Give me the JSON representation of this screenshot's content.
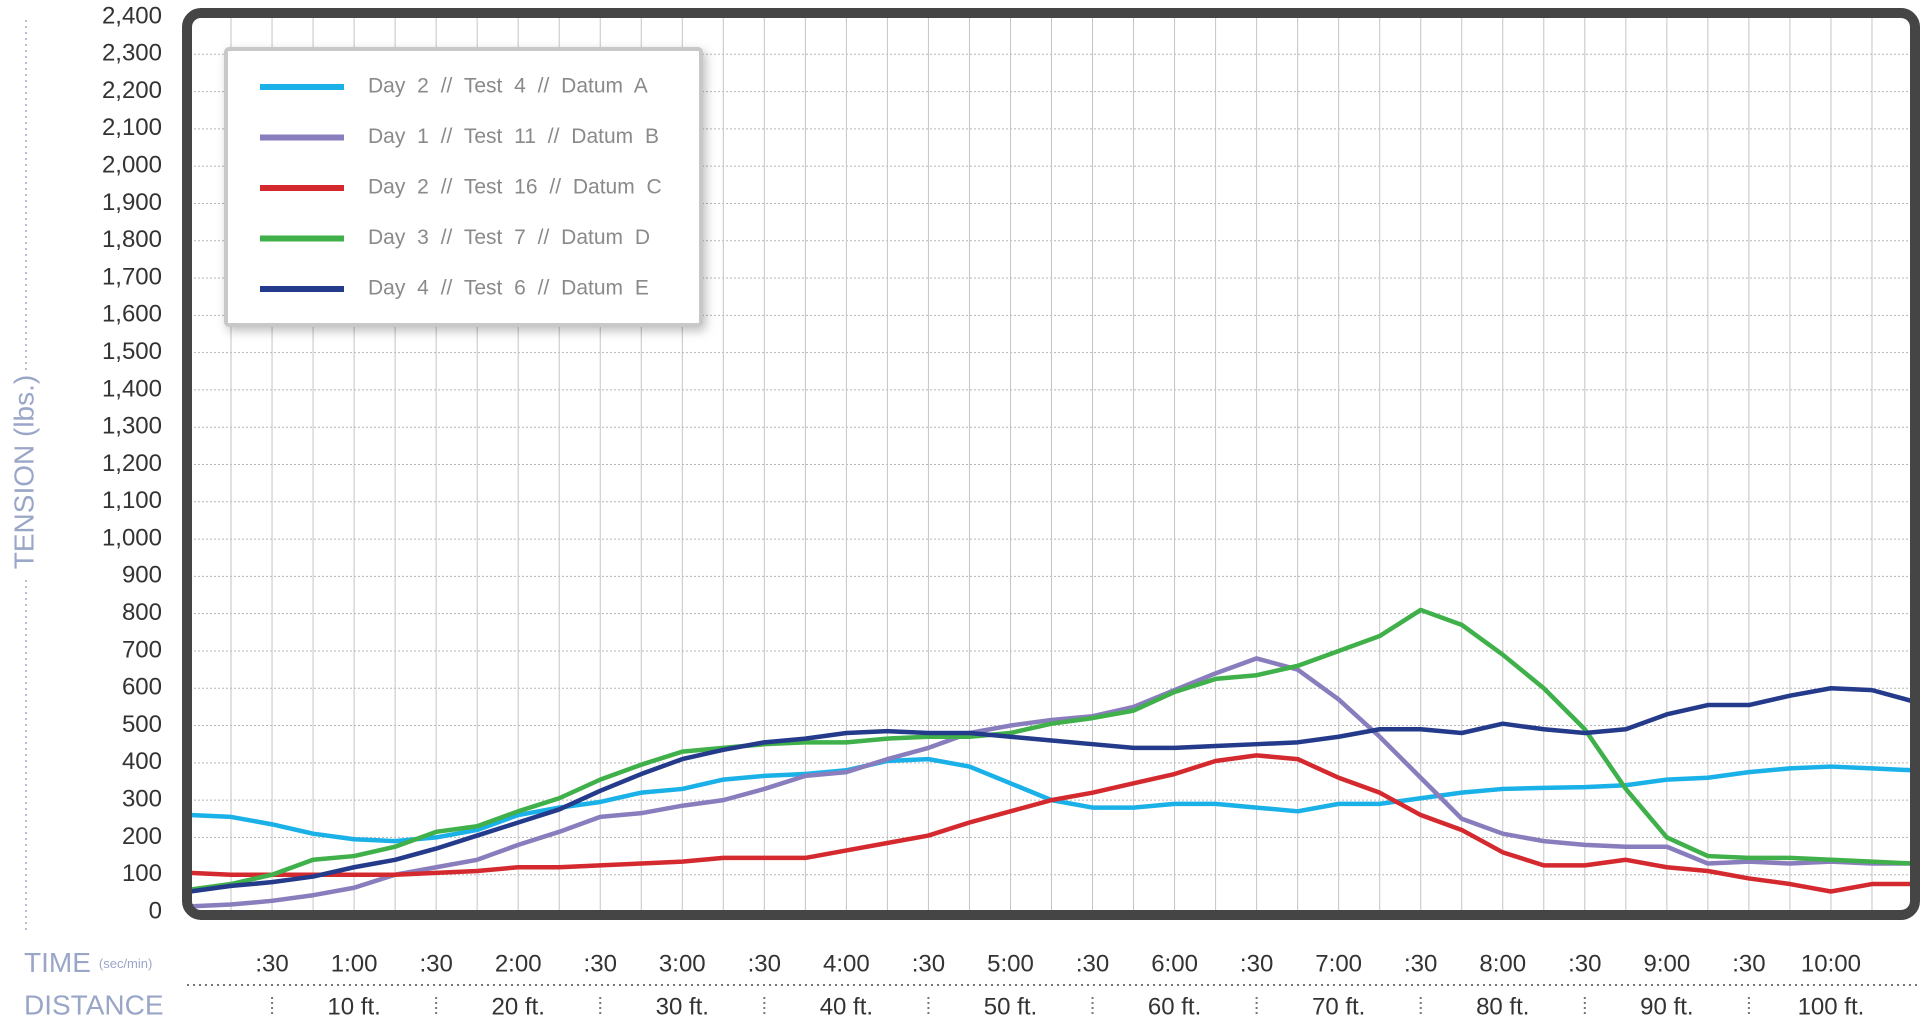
{
  "chart_data": {
    "type": "line",
    "y_label": "TENSION (lbs.)",
    "x_label": "TIME",
    "x_label_note": "(sec/min)",
    "x2_label": "DISTANCE",
    "grid": true,
    "legend": "upper left",
    "x": [
      0,
      15,
      30,
      45,
      60,
      75,
      90,
      105,
      120,
      135,
      150,
      165,
      180,
      195,
      210,
      225,
      240,
      255,
      270,
      285,
      300,
      315,
      330,
      345,
      360,
      375,
      390,
      405,
      420,
      435,
      450,
      465,
      480,
      495,
      510,
      525,
      540,
      555,
      570,
      585,
      600,
      615,
      630
    ],
    "series": [
      {
        "name": "Day 2 // Test 4 // Datum A",
        "color": "#1ab0e8",
        "values": [
          260,
          255,
          235,
          210,
          195,
          190,
          200,
          220,
          260,
          280,
          295,
          320,
          330,
          355,
          365,
          370,
          380,
          405,
          410,
          390,
          345,
          300,
          280,
          280,
          290,
          290,
          280,
          270,
          290,
          290,
          305,
          320,
          330,
          333,
          335,
          340,
          355,
          360,
          375,
          385,
          390,
          385,
          380
        ]
      },
      {
        "name": "Day 1 // Test 11 // Datum B",
        "color": "#8a7dbd",
        "values": [
          15,
          20,
          30,
          45,
          65,
          100,
          120,
          140,
          180,
          215,
          255,
          265,
          285,
          300,
          330,
          365,
          375,
          410,
          440,
          480,
          500,
          515,
          525,
          550,
          595,
          640,
          680,
          650,
          570,
          470,
          360,
          250,
          210,
          190,
          180,
          175,
          175,
          130,
          135,
          130,
          135,
          130,
          130
        ]
      },
      {
        "name": "Day 2 // Test 16 // Datum C",
        "color": "#d42a2f",
        "values": [
          105,
          100,
          100,
          100,
          100,
          100,
          105,
          110,
          120,
          120,
          125,
          130,
          135,
          145,
          145,
          145,
          165,
          185,
          205,
          240,
          270,
          300,
          320,
          345,
          370,
          405,
          420,
          410,
          360,
          320,
          260,
          220,
          160,
          125,
          125,
          140,
          120,
          110,
          90,
          75,
          55,
          75,
          75
        ]
      },
      {
        "name": "Day 3 // Test 7 // Datum D",
        "color": "#3fb04a",
        "values": [
          60,
          75,
          100,
          140,
          150,
          175,
          215,
          230,
          270,
          305,
          355,
          395,
          430,
          440,
          450,
          455,
          455,
          465,
          470,
          470,
          480,
          505,
          520,
          540,
          590,
          625,
          635,
          660,
          700,
          740,
          810,
          770,
          690,
          600,
          490,
          330,
          200,
          150,
          145,
          145,
          140,
          135,
          130
        ]
      },
      {
        "name": "Day 4 // Test 6 // Datum E",
        "color": "#243a8a",
        "values": [
          55,
          70,
          80,
          95,
          120,
          140,
          170,
          205,
          240,
          275,
          325,
          370,
          410,
          435,
          455,
          465,
          480,
          485,
          480,
          480,
          470,
          460,
          450,
          440,
          440,
          445,
          450,
          455,
          470,
          490,
          490,
          480,
          505,
          490,
          480,
          490,
          530,
          555,
          555,
          580,
          600,
          595,
          565
        ]
      }
    ],
    "xlim": [
      0,
      630
    ],
    "xticks": [
      {
        "value": 30,
        "label": ":30"
      },
      {
        "value": 60,
        "label": "1:00"
      },
      {
        "value": 90,
        "label": ":30"
      },
      {
        "value": 120,
        "label": "2:00"
      },
      {
        "value": 150,
        "label": ":30"
      },
      {
        "value": 180,
        "label": "3:00"
      },
      {
        "value": 210,
        "label": ":30"
      },
      {
        "value": 240,
        "label": "4:00"
      },
      {
        "value": 270,
        "label": ":30"
      },
      {
        "value": 300,
        "label": "5:00"
      },
      {
        "value": 330,
        "label": ":30"
      },
      {
        "value": 360,
        "label": "6:00"
      },
      {
        "value": 390,
        "label": ":30"
      },
      {
        "value": 420,
        "label": "7:00"
      },
      {
        "value": 450,
        "label": ":30"
      },
      {
        "value": 480,
        "label": "8:00"
      },
      {
        "value": 510,
        "label": ":30"
      },
      {
        "value": 540,
        "label": "9:00"
      },
      {
        "value": 570,
        "label": ":30"
      },
      {
        "value": 600,
        "label": "10:00"
      }
    ],
    "distance_ticks": [
      {
        "value": 60,
        "label": "10 ft."
      },
      {
        "value": 120,
        "label": "20 ft."
      },
      {
        "value": 180,
        "label": "30 ft."
      },
      {
        "value": 240,
        "label": "40 ft."
      },
      {
        "value": 300,
        "label": "50 ft."
      },
      {
        "value": 360,
        "label": "60 ft."
      },
      {
        "value": 420,
        "label": "70 ft."
      },
      {
        "value": 480,
        "label": "80 ft."
      },
      {
        "value": 540,
        "label": "90 ft."
      },
      {
        "value": 600,
        "label": "100 ft."
      }
    ],
    "ylim": [
      0,
      2400
    ],
    "yticks": [
      0,
      100,
      200,
      300,
      400,
      500,
      600,
      700,
      800,
      900,
      {
        "value": 1000,
        "label": "1,000"
      },
      {
        "value": 1100,
        "label": "1,100"
      },
      {
        "value": 1200,
        "label": "1,200"
      },
      {
        "value": 1300,
        "label": "1,300"
      },
      {
        "value": 1400,
        "label": "1,400"
      },
      {
        "value": 1500,
        "label": "1,500"
      },
      {
        "value": 1600,
        "label": "1,600"
      },
      {
        "value": 1700,
        "label": "1,700"
      },
      {
        "value": 1800,
        "label": "1,800"
      },
      {
        "value": 1900,
        "label": "1,900"
      },
      {
        "value": 2000,
        "label": "2,000"
      },
      {
        "value": 2100,
        "label": "2,100"
      },
      {
        "value": 2200,
        "label": "2,200"
      },
      {
        "value": 2300,
        "label": "2,300"
      },
      {
        "value": 2400,
        "label": "2,400"
      }
    ]
  }
}
